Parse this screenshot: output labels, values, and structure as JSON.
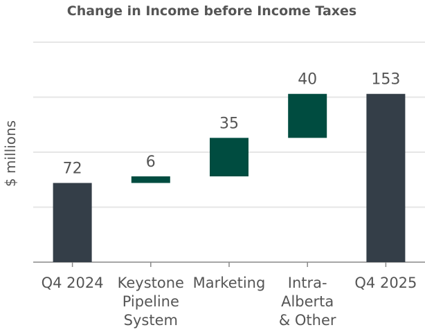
{
  "chart_data": {
    "type": "waterfall",
    "title": "Change in Income before Income Taxes",
    "xlabel": "",
    "ylabel": "$ millions",
    "ylim": [
      0,
      200
    ],
    "grid": true,
    "grid_step": 50,
    "categories": [
      [
        "Q4 2024"
      ],
      [
        "Keystone",
        "Pipeline",
        "System"
      ],
      [
        "Marketing"
      ],
      [
        "Intra-",
        "Alberta",
        "& Other"
      ],
      [
        "Q4 2025"
      ]
    ],
    "values": [
      72,
      6,
      35,
      40,
      153
    ],
    "bar_kinds": [
      "total",
      "increase",
      "increase",
      "increase",
      "total"
    ],
    "data_labels": [
      "72",
      "6",
      "35",
      "40",
      "153"
    ],
    "colors": {
      "total": "#343e48",
      "increase": "#004c40",
      "grid": "#e6e6e6",
      "axis": "#888888"
    }
  }
}
